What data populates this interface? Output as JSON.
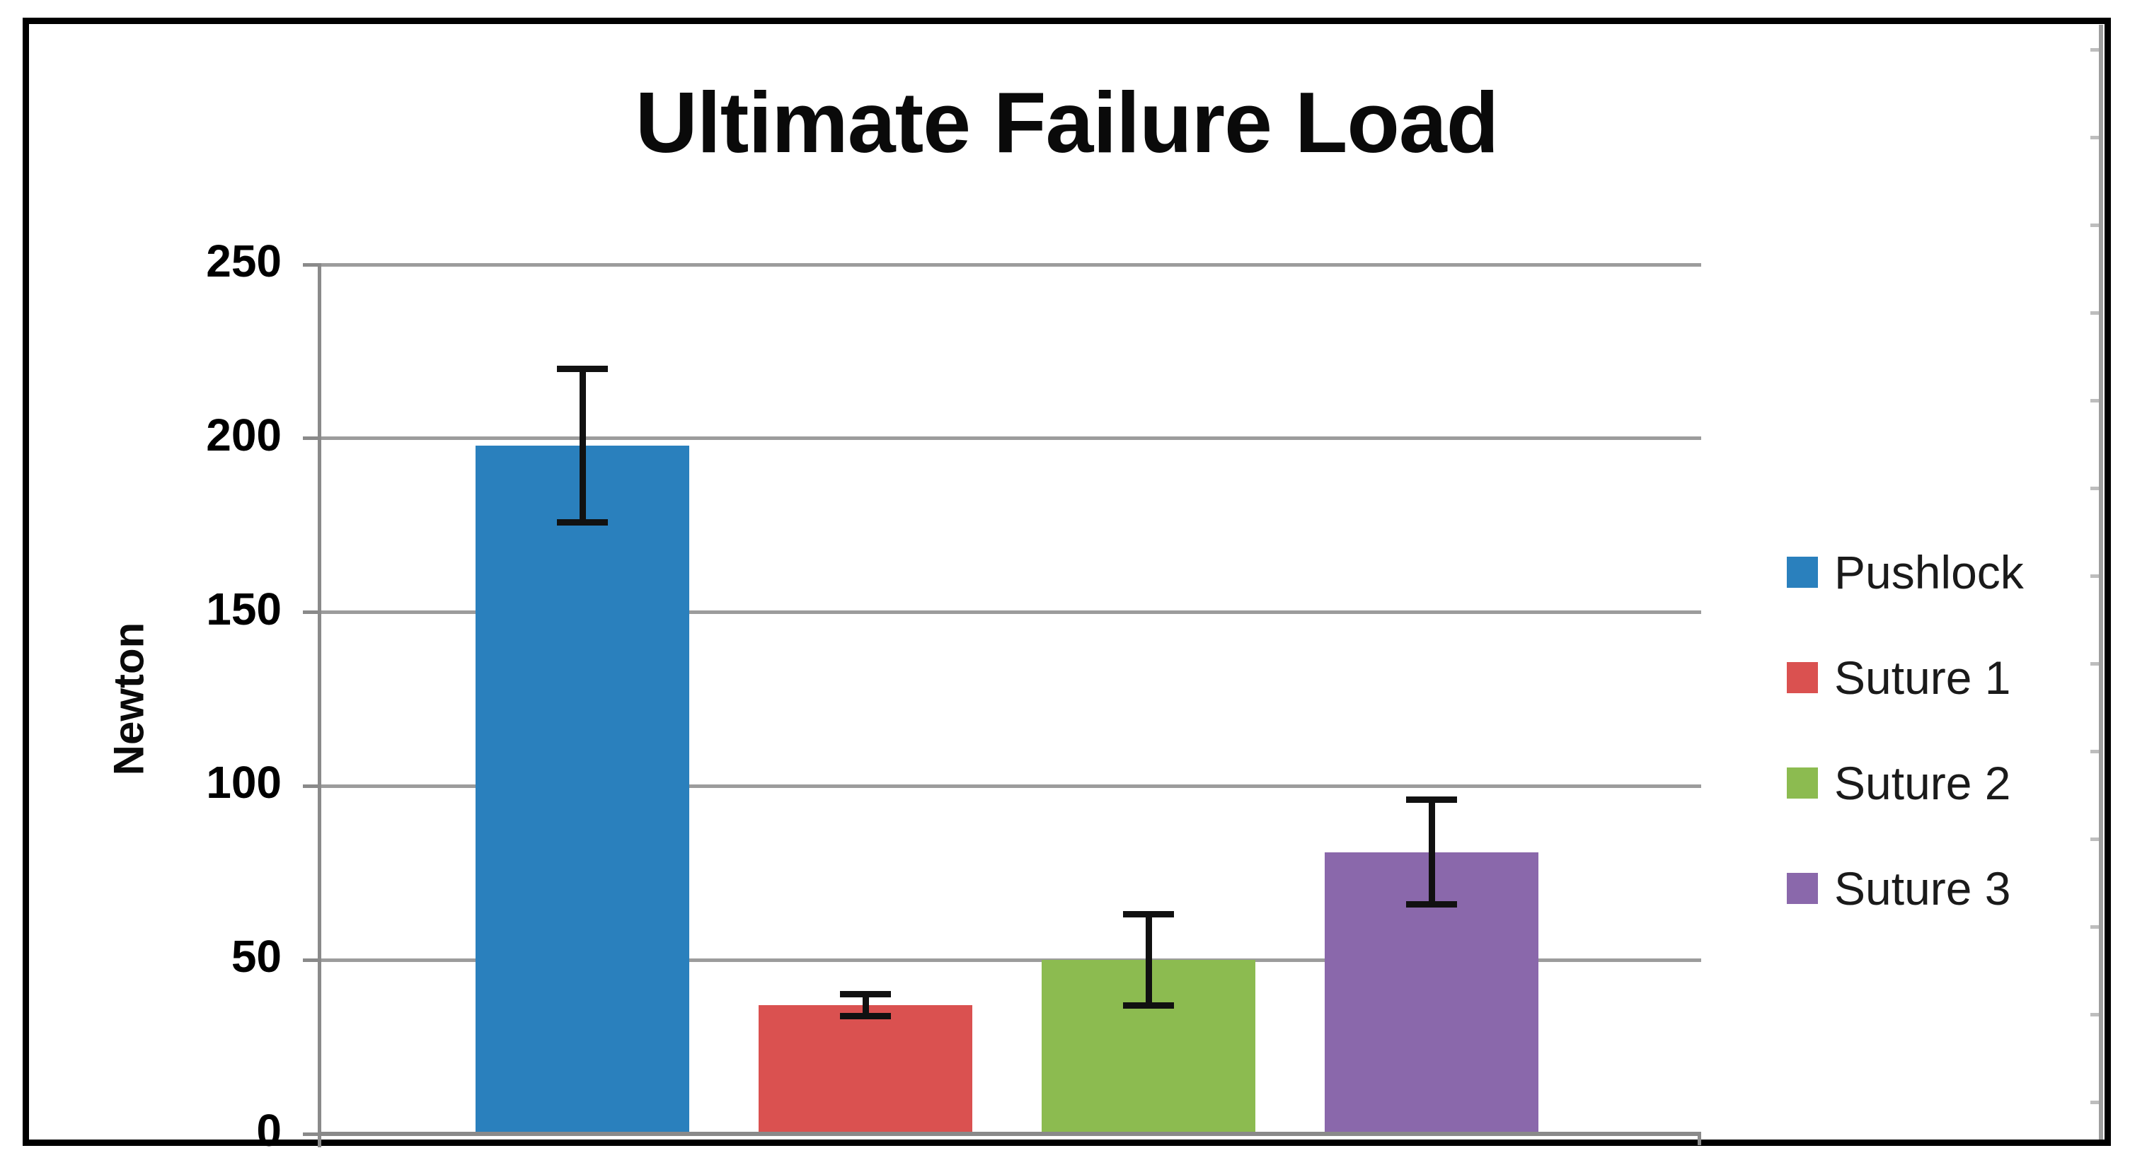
{
  "chart_data": {
    "type": "bar",
    "title": "Ultimate Failure Load",
    "ylabel": "Newton",
    "xlabel": "",
    "categories": [
      "Pushlock",
      "Suture 1",
      "Suture 2",
      "Suture 3"
    ],
    "values": [
      198,
      37,
      50,
      81
    ],
    "error_bars": [
      23,
      4,
      14,
      16
    ],
    "bar_colors": [
      "#2A80BD",
      "#DA5150",
      "#8CBB50",
      "#8A68AB"
    ],
    "ylim": [
      0,
      250
    ],
    "ytick_step": 50,
    "yticks": [
      0,
      50,
      100,
      150,
      200,
      250
    ],
    "grid": true,
    "gridline_color": "#9c9c9c",
    "axis_color": "#8a8a8a",
    "error_bar_color": "#111111",
    "legend_position": "right",
    "legend": [
      {
        "label": "Pushlock",
        "color": "#2A80BD"
      },
      {
        "label": "Suture 1",
        "color": "#DA5150"
      },
      {
        "label": "Suture 2",
        "color": "#8CBB50"
      },
      {
        "label": "Suture 3",
        "color": "#8A68AB"
      }
    ]
  }
}
